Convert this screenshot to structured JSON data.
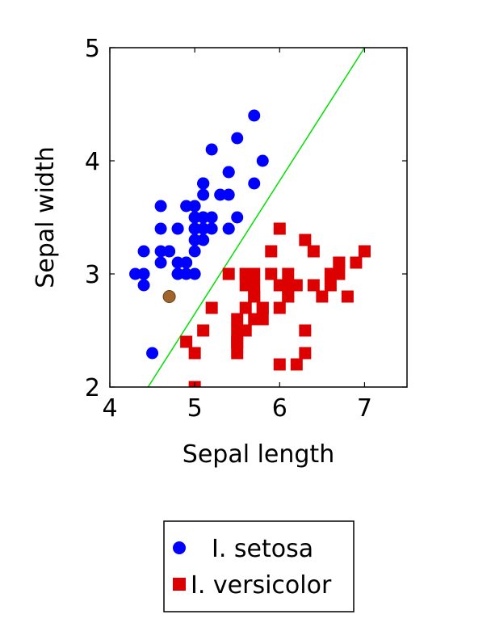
{
  "chart_data": {
    "type": "scatter",
    "title": "",
    "xlabel": "Sepal length",
    "ylabel": "Sepal width",
    "xlim": [
      4,
      7.5
    ],
    "ylim": [
      2,
      5
    ],
    "xticks": [
      "4",
      "5",
      "6",
      "7"
    ],
    "yticks": [
      "2",
      "3",
      "4",
      "5"
    ],
    "grid": false,
    "legend_position": "bottom",
    "series": [
      {
        "name": "I. setosa",
        "marker": "circle",
        "color": "#0000ff",
        "points": [
          [
            5.1,
            3.5
          ],
          [
            4.9,
            3.0
          ],
          [
            4.7,
            3.2
          ],
          [
            4.6,
            3.1
          ],
          [
            5.0,
            3.6
          ],
          [
            5.4,
            3.9
          ],
          [
            4.6,
            3.4
          ],
          [
            5.0,
            3.4
          ],
          [
            4.4,
            2.9
          ],
          [
            4.9,
            3.1
          ],
          [
            5.4,
            3.7
          ],
          [
            4.8,
            3.4
          ],
          [
            4.8,
            3.0
          ],
          [
            4.3,
            3.0
          ],
          [
            5.8,
            4.0
          ],
          [
            5.7,
            4.4
          ],
          [
            5.4,
            3.9
          ],
          [
            5.1,
            3.5
          ],
          [
            5.7,
            3.8
          ],
          [
            5.1,
            3.8
          ],
          [
            5.4,
            3.4
          ],
          [
            5.1,
            3.7
          ],
          [
            4.6,
            3.6
          ],
          [
            5.1,
            3.3
          ],
          [
            4.8,
            3.4
          ],
          [
            5.0,
            3.0
          ],
          [
            5.0,
            3.4
          ],
          [
            5.2,
            3.5
          ],
          [
            5.2,
            3.4
          ],
          [
            4.7,
            3.2
          ],
          [
            4.8,
            3.1
          ],
          [
            5.4,
            3.4
          ],
          [
            5.2,
            4.1
          ],
          [
            5.5,
            4.2
          ],
          [
            4.9,
            3.1
          ],
          [
            5.0,
            3.2
          ],
          [
            5.5,
            3.5
          ],
          [
            4.9,
            3.6
          ],
          [
            4.4,
            3.0
          ],
          [
            5.1,
            3.4
          ],
          [
            5.0,
            3.5
          ],
          [
            4.5,
            2.3
          ],
          [
            4.4,
            3.2
          ],
          [
            5.0,
            3.5
          ],
          [
            5.1,
            3.8
          ],
          [
            4.8,
            3.0
          ],
          [
            5.1,
            3.8
          ],
          [
            4.6,
            3.2
          ],
          [
            5.3,
            3.7
          ],
          [
            5.0,
            3.3
          ]
        ]
      },
      {
        "name": "I. versicolor",
        "marker": "square",
        "color": "#dd0000",
        "points": [
          [
            7.0,
            3.2
          ],
          [
            6.4,
            3.2
          ],
          [
            6.9,
            3.1
          ],
          [
            5.5,
            2.3
          ],
          [
            6.5,
            2.8
          ],
          [
            5.7,
            2.8
          ],
          [
            6.3,
            3.3
          ],
          [
            4.9,
            2.4
          ],
          [
            6.6,
            2.9
          ],
          [
            5.2,
            2.7
          ],
          [
            5.0,
            2.0
          ],
          [
            5.9,
            3.0
          ],
          [
            6.0,
            2.2
          ],
          [
            6.1,
            2.9
          ],
          [
            5.6,
            2.9
          ],
          [
            6.7,
            3.1
          ],
          [
            5.6,
            3.0
          ],
          [
            5.8,
            2.7
          ],
          [
            6.2,
            2.2
          ],
          [
            5.6,
            2.5
          ],
          [
            5.9,
            3.2
          ],
          [
            6.1,
            2.8
          ],
          [
            6.3,
            2.5
          ],
          [
            6.1,
            2.8
          ],
          [
            6.4,
            2.9
          ],
          [
            6.6,
            3.0
          ],
          [
            6.8,
            2.8
          ],
          [
            6.7,
            3.0
          ],
          [
            6.0,
            2.9
          ],
          [
            5.7,
            2.6
          ],
          [
            5.5,
            2.4
          ],
          [
            5.5,
            2.4
          ],
          [
            5.8,
            2.7
          ],
          [
            6.0,
            2.7
          ],
          [
            5.4,
            3.0
          ],
          [
            6.0,
            3.4
          ],
          [
            6.7,
            3.1
          ],
          [
            6.3,
            2.3
          ],
          [
            5.6,
            3.0
          ],
          [
            5.5,
            2.5
          ],
          [
            5.5,
            2.6
          ],
          [
            6.1,
            3.0
          ],
          [
            5.8,
            2.6
          ],
          [
            5.0,
            2.3
          ],
          [
            5.6,
            2.7
          ],
          [
            5.7,
            3.0
          ],
          [
            5.7,
            2.9
          ],
          [
            6.2,
            2.9
          ],
          [
            5.1,
            2.5
          ],
          [
            5.7,
            2.8
          ]
        ]
      }
    ],
    "highlight_point": {
      "x": 4.7,
      "y": 2.8,
      "color": "#a0642d"
    },
    "decision_line": {
      "from": [
        4.45,
        2.0
      ],
      "to": [
        7.0,
        5.0
      ],
      "color": "#00e000"
    }
  }
}
